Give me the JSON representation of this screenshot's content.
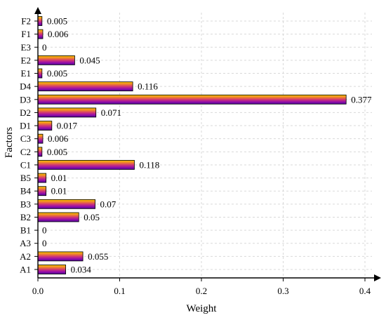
{
  "chart_data": {
    "type": "bar",
    "orientation": "horizontal",
    "xlabel": "Weight",
    "ylabel": "Factors",
    "xlim": [
      0,
      0.4
    ],
    "xticks": [
      "0.0",
      "0.1",
      "0.2",
      "0.3",
      "0.4"
    ],
    "categories": [
      "A1",
      "A2",
      "A3",
      "B1",
      "B2",
      "B3",
      "B4",
      "B5",
      "C1",
      "C2",
      "C3",
      "D1",
      "D2",
      "D3",
      "D4",
      "E1",
      "E2",
      "E3",
      "F1",
      "F2"
    ],
    "values": [
      0.034,
      0.055,
      0,
      0,
      0.05,
      0.07,
      0.01,
      0.01,
      0.118,
      0.005,
      0.006,
      0.017,
      0.071,
      0.377,
      0.116,
      0.005,
      0.045,
      0,
      0.006,
      0.005
    ],
    "value_labels": [
      "0.034",
      "0.055",
      "0",
      "0",
      "0.05",
      "0.07",
      "0.01",
      "0.01",
      "0.118",
      "0.005",
      "0.006",
      "0.017",
      "0.071",
      "0.377",
      "0.116",
      "0.005",
      "0.045",
      "0",
      "0.006",
      "0.005"
    ],
    "grid": "dashed, both axes",
    "bar_gradient_colors": [
      "#f5c400",
      "#f0852a",
      "#d23873",
      "#9a0fa8",
      "#4a0698"
    ]
  }
}
